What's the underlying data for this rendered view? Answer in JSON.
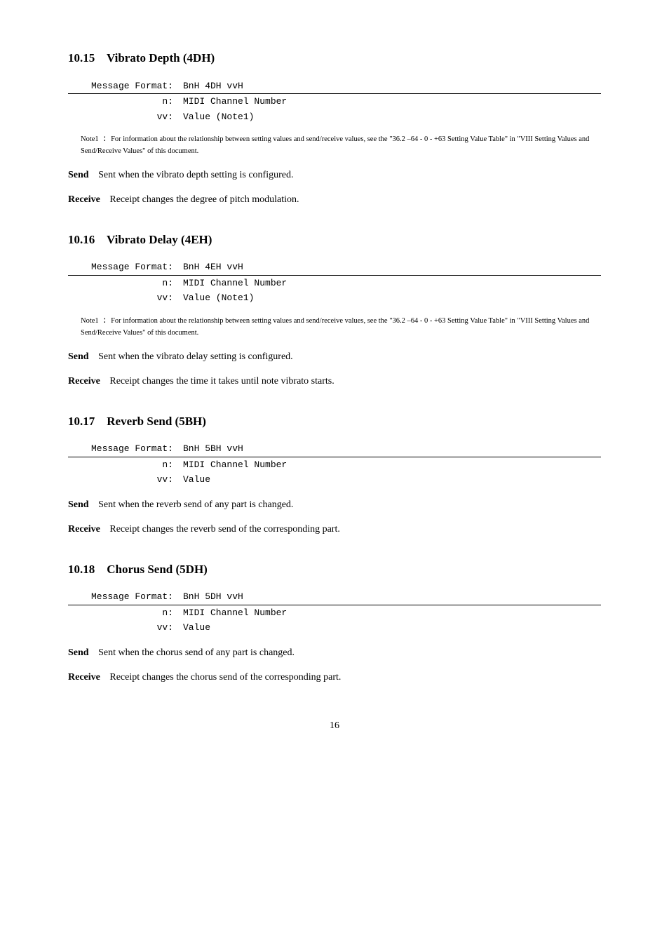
{
  "sections": [
    {
      "number": "10.15",
      "title": "Vibrato Depth (4DH)",
      "msg": {
        "format": "BnH 4DH vvH",
        "n": "MIDI Channel Number",
        "vv": "Value (Note1)"
      },
      "note": "For information about the relationship between setting values and send/receive values, see the \"36.2 –64 - 0 - +63 Setting Value Table\" in \"VIII Setting Values and Send/Receive Values\" of this document.",
      "send": "Sent when the vibrato depth setting is configured.",
      "receive": "Receipt changes the degree of pitch modulation."
    },
    {
      "number": "10.16",
      "title": "Vibrato Delay (4EH)",
      "msg": {
        "format": "BnH 4EH vvH",
        "n": "MIDI Channel Number",
        "vv": "Value (Note1)"
      },
      "note": "For information about the relationship between setting values and send/receive values, see the \"36.2 –64 - 0 - +63 Setting Value Table\" in \"VIII Setting Values and Send/Receive Values\" of this document.",
      "send": "Sent when the vibrato delay setting is configured.",
      "receive": "Receipt changes the time it takes until note vibrato starts."
    },
    {
      "number": "10.17",
      "title": "Reverb Send (5BH)",
      "msg": {
        "format": "BnH 5BH vvH",
        "n": "MIDI Channel Number",
        "vv": "Value"
      },
      "send": "Sent when the reverb send of any part is changed.",
      "receive": "Receipt changes the reverb send of the corresponding part."
    },
    {
      "number": "10.18",
      "title": "Chorus Send (5DH)",
      "msg": {
        "format": "BnH 5DH vvH",
        "n": "MIDI Channel Number",
        "vv": "Value"
      },
      "send": "Sent when the chorus send of any part is changed.",
      "receive": "Receipt changes the chorus send of the corresponding part."
    }
  ],
  "labels": {
    "msg_format": "Message Format:",
    "n": "n:",
    "vv": "vv:",
    "note1": "Note1",
    "send": "Send",
    "receive": "Receive"
  },
  "page_number": "16"
}
